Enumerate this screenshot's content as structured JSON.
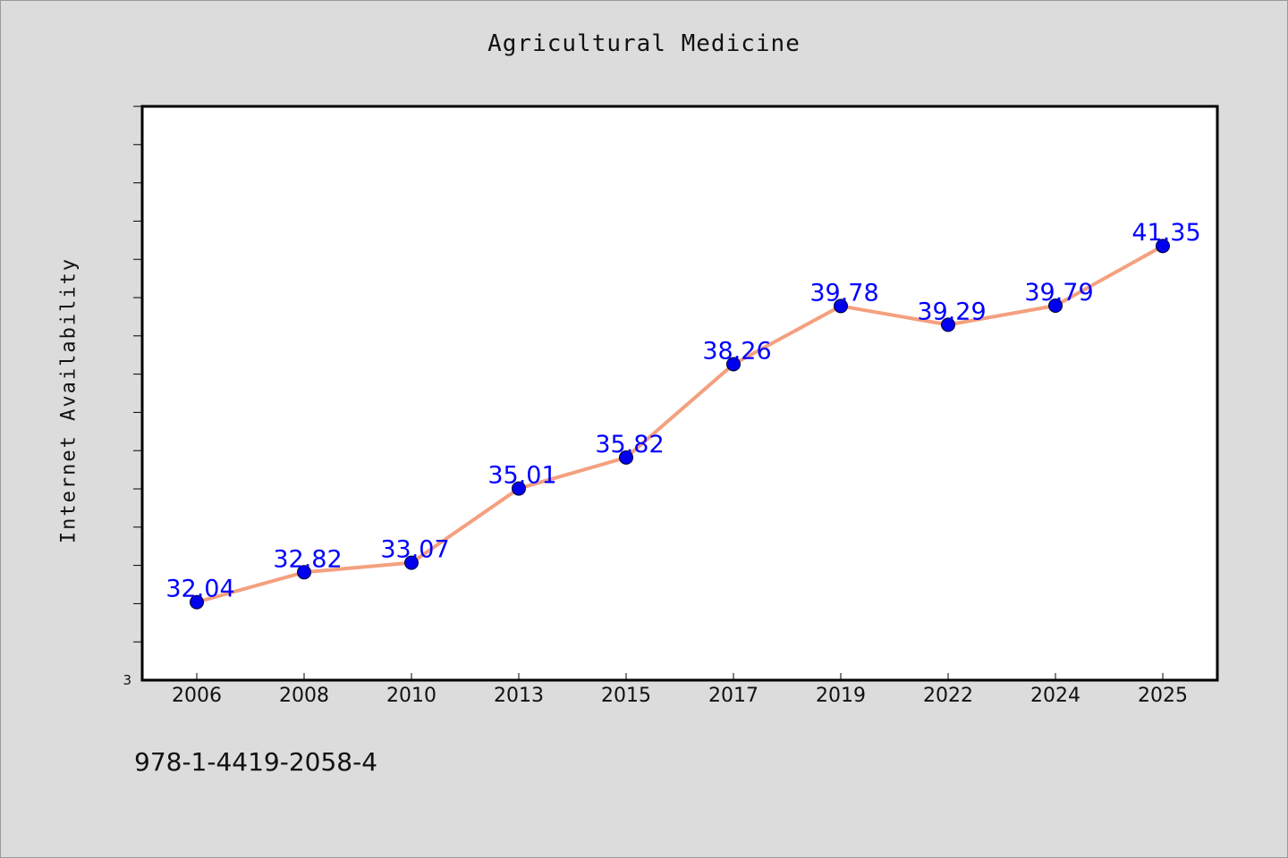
{
  "chart_data": {
    "type": "line",
    "title": "Agricultural Medicine",
    "xlabel": "",
    "ylabel": "Internet Availability",
    "categories": [
      "2006",
      "2008",
      "2010",
      "2013",
      "2015",
      "2017",
      "2019",
      "2022",
      "2024",
      "2025"
    ],
    "series": [
      {
        "values": [
          32.04,
          32.82,
          33.07,
          35.01,
          35.82,
          38.26,
          39.78,
          39.29,
          39.79,
          41.35
        ],
        "data_labels": [
          "32.04",
          "32.82",
          "33.07",
          "35.01",
          "35.82",
          "38.26",
          "39.78",
          "39.29",
          "39.79",
          "41.35"
        ],
        "line_color": "#f4a07f",
        "marker_color": "#0000ee"
      }
    ],
    "ylim": [
      30,
      45
    ],
    "y_tick_labels": [
      "3"
    ],
    "grid": false,
    "label_color": "#0000ff"
  },
  "footer": {
    "isbn": "978-1-4419-2058-4"
  }
}
